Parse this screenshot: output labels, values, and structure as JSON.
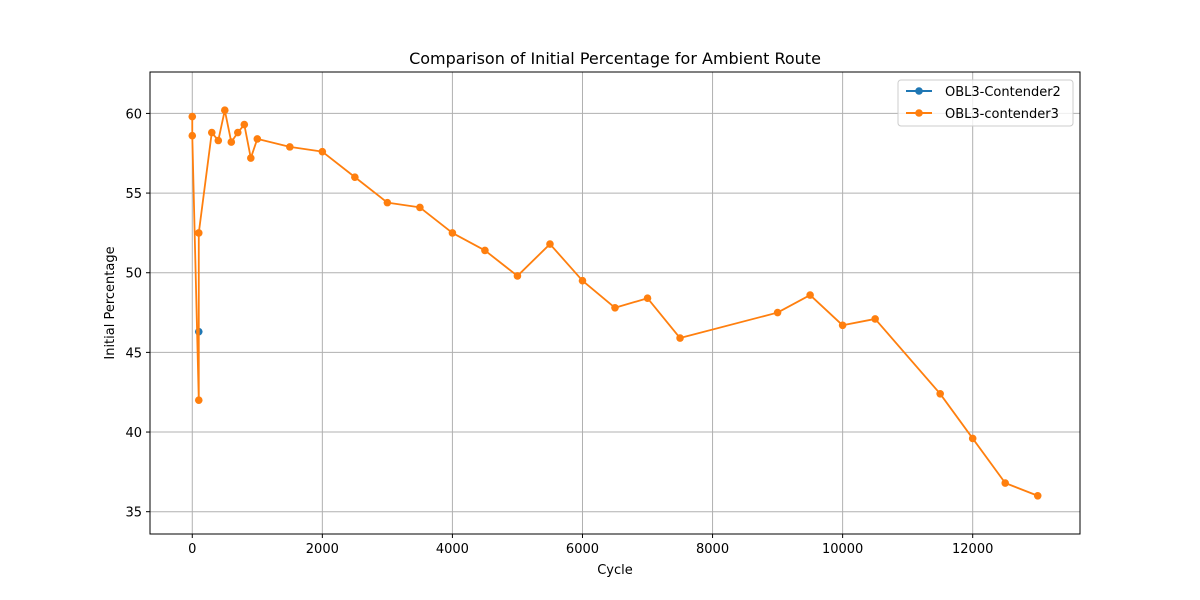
{
  "chart_data": {
    "type": "line",
    "title": "Comparison of Initial Percentage for Ambient Route",
    "xlabel": "Cycle",
    "ylabel": "Initial Percentage",
    "xlim": [
      -650,
      13650
    ],
    "ylim": [
      33.6,
      62.6
    ],
    "xticks": [
      0,
      2000,
      4000,
      6000,
      8000,
      10000,
      12000
    ],
    "yticks": [
      35,
      40,
      45,
      50,
      55,
      60
    ],
    "grid": true,
    "legend_position": "top-right",
    "series": [
      {
        "name": "OBL3-Contender2",
        "color": "#1f77b4",
        "x": [
          100
        ],
        "y": [
          46.3
        ]
      },
      {
        "name": "OBL3-contender3",
        "color": "#ff7f0e",
        "x": [
          0,
          0,
          100,
          100,
          300,
          400,
          500,
          600,
          700,
          800,
          900,
          1000,
          1500,
          2000,
          2500,
          3000,
          3500,
          4000,
          4500,
          5000,
          5500,
          6000,
          6500,
          7000,
          7500,
          9000,
          9500,
          10000,
          10500,
          11500,
          12000,
          12500,
          13000
        ],
        "y": [
          59.8,
          58.6,
          42.0,
          52.5,
          58.8,
          58.3,
          60.2,
          58.2,
          58.8,
          59.3,
          57.2,
          58.4,
          57.9,
          57.6,
          56.0,
          54.4,
          54.1,
          52.5,
          51.4,
          49.8,
          51.8,
          49.5,
          47.8,
          48.4,
          45.9,
          47.5,
          48.6,
          46.7,
          47.1,
          42.4,
          39.6,
          36.8,
          36.0
        ]
      }
    ]
  }
}
